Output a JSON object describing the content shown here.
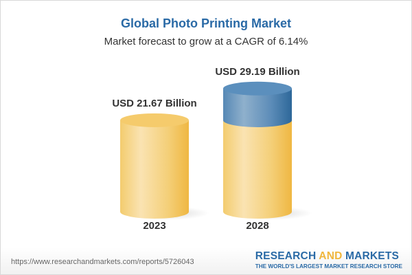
{
  "header": {
    "title": "Global Photo Printing Market",
    "subtitle": "Market forecast to grow at a CAGR of 6.14%"
  },
  "chart_data": {
    "type": "bar",
    "style": "3d-cylinder",
    "categories": [
      "2023",
      "2028"
    ],
    "values": [
      21.67,
      29.19
    ],
    "data_labels": [
      "USD 21.67 Billion",
      "USD 29.19 Billion"
    ],
    "title": "Global Photo Printing Market",
    "subtitle": "Market forecast to grow at a CAGR of 6.14%",
    "unit": "USD Billion",
    "grid": false,
    "colors": {
      "base": "#f2c55c",
      "growth": "#3f79a8"
    }
  },
  "footer": {
    "url": "https://www.researchandmarkets.com/reports/5726043",
    "logo_research": "RESEARCH",
    "logo_and": "AND",
    "logo_markets": "MARKETS",
    "tagline": "THE WORLD'S LARGEST MARKET RESEARCH STORE"
  }
}
